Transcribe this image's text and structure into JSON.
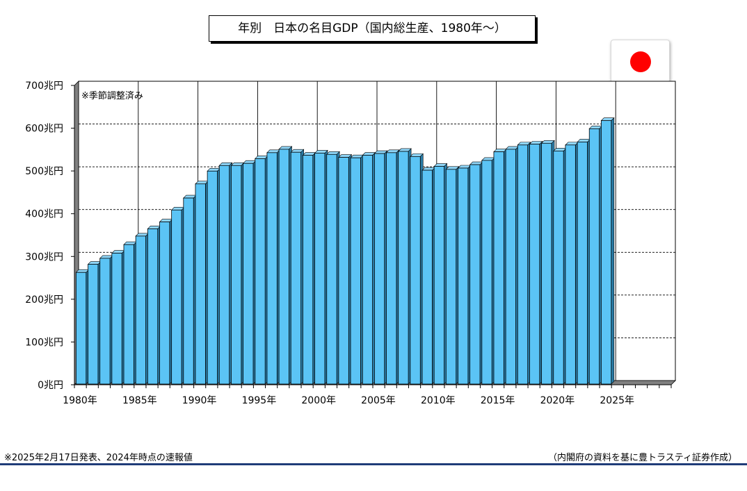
{
  "chart_data": {
    "type": "bar",
    "title": "年別　日本の名目GDP（国内総生産、1980年～）",
    "note": "※季節調整済み",
    "ylabel": "",
    "xlabel": "",
    "ylim": [
      0,
      700
    ],
    "xlim": [
      1980,
      2030
    ],
    "y_ticks": [
      {
        "value": 0,
        "label": "0兆円"
      },
      {
        "value": 100,
        "label": "100兆円"
      },
      {
        "value": 200,
        "label": "200兆円"
      },
      {
        "value": 300,
        "label": "300兆円"
      },
      {
        "value": 400,
        "label": "400兆円"
      },
      {
        "value": 500,
        "label": "500兆円"
      },
      {
        "value": 600,
        "label": "600兆円"
      },
      {
        "value": 700,
        "label": "700兆円"
      }
    ],
    "x_ticks": [
      {
        "value": 1980,
        "label": "1980年"
      },
      {
        "value": 1985,
        "label": "1985年"
      },
      {
        "value": 1990,
        "label": "1990年"
      },
      {
        "value": 1995,
        "label": "1995年"
      },
      {
        "value": 2000,
        "label": "2000年"
      },
      {
        "value": 2005,
        "label": "2005年"
      },
      {
        "value": 2010,
        "label": "2010年"
      },
      {
        "value": 2015,
        "label": "2015年"
      },
      {
        "value": 2020,
        "label": "2020年"
      },
      {
        "value": 2025,
        "label": "2025年"
      }
    ],
    "categories": [
      1980,
      1981,
      1982,
      1983,
      1984,
      1985,
      1986,
      1987,
      1988,
      1989,
      1990,
      1991,
      1992,
      1993,
      1994,
      1995,
      1996,
      1997,
      1998,
      1999,
      2000,
      2001,
      2002,
      2003,
      2004,
      2005,
      2006,
      2007,
      2008,
      2009,
      2010,
      2011,
      2012,
      2013,
      2014,
      2015,
      2016,
      2017,
      2018,
      2019,
      2020,
      2021,
      2022,
      2023,
      2024
    ],
    "values": [
      253,
      272,
      286,
      298,
      318,
      338,
      355,
      371,
      399,
      427,
      460,
      490,
      503,
      503,
      508,
      519,
      533,
      541,
      534,
      527,
      532,
      529,
      522,
      521,
      527,
      531,
      533,
      536,
      524,
      492,
      501,
      494,
      497,
      505,
      515,
      535,
      541,
      551,
      553,
      555,
      537,
      551,
      558,
      589,
      608
    ],
    "grid": true,
    "legend": "none",
    "bar_color": "#5bc4f5",
    "grid_major_color": "#000000",
    "grid_minor_color": "#000000"
  },
  "flag": {
    "name": "japan-flag",
    "disc_color": "#ff0000"
  },
  "footer": {
    "note": "※2025年2月17日発表、2024年時点の速報値",
    "source": "（内閣府の資料を基に豊トラスティ証券作成）"
  }
}
